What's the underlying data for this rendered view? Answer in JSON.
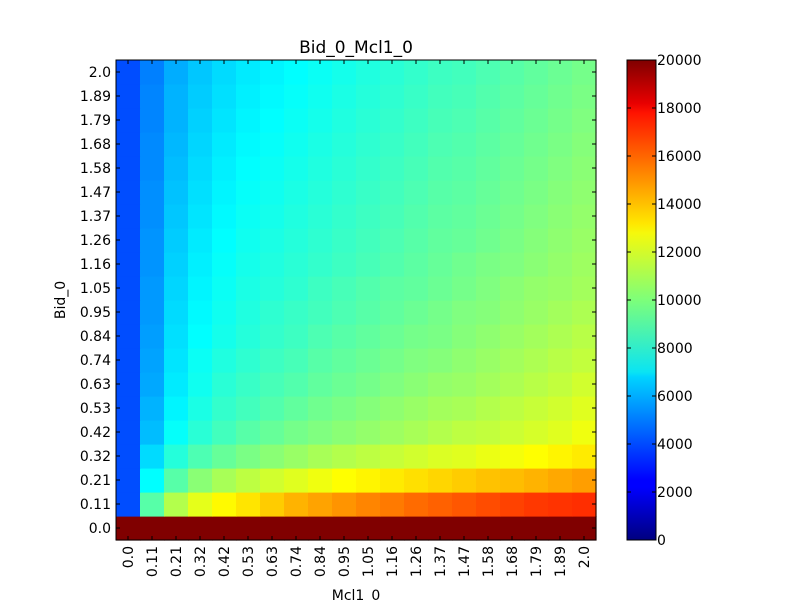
{
  "chart_data": {
    "type": "heatmap",
    "title": "Bid_0_Mcl1_0",
    "xlabel": "Mcl1_0",
    "ylabel": "Bid_0",
    "x_tick_labels": [
      "0.0",
      "0.11",
      "0.21",
      "0.32",
      "0.42",
      "0.53",
      "0.63",
      "0.74",
      "0.84",
      "0.95",
      "1.05",
      "1.16",
      "1.26",
      "1.37",
      "1.47",
      "1.58",
      "1.68",
      "1.79",
      "1.89",
      "2.0"
    ],
    "y_tick_labels": [
      "0.0",
      "0.11",
      "0.21",
      "0.32",
      "0.42",
      "0.53",
      "0.63",
      "0.74",
      "0.84",
      "0.95",
      "1.05",
      "1.16",
      "1.26",
      "1.37",
      "1.47",
      "1.58",
      "1.68",
      "1.79",
      "1.89",
      "2.0"
    ],
    "colorbar": {
      "min": 0,
      "max": 20000,
      "tick_values": [
        0,
        2000,
        4000,
        6000,
        8000,
        10000,
        12000,
        14000,
        16000,
        18000,
        20000
      ],
      "tick_labels": [
        "0",
        "2000",
        "4000",
        "6000",
        "8000",
        "10000",
        "12000",
        "14000",
        "16000",
        "18000",
        "20000"
      ],
      "colormap": "jet"
    },
    "values": [
      [
        20000,
        20000,
        20000,
        20000,
        20000,
        20000,
        20000,
        20000,
        20000,
        20000,
        20000,
        20000,
        20000,
        20000,
        20000,
        20000,
        20000,
        20000,
        20000,
        20000
      ],
      [
        4000,
        9200,
        11000,
        12000,
        12600,
        13000,
        13500,
        14000,
        14300,
        14600,
        14900,
        15100,
        15400,
        15600,
        15800,
        16000,
        16200,
        16400,
        16500,
        16600
      ],
      [
        4000,
        7500,
        9200,
        10200,
        10800,
        11200,
        11600,
        11900,
        12200,
        12500,
        12700,
        12900,
        13100,
        13300,
        13500,
        13700,
        13800,
        14000,
        14200,
        14400
      ],
      [
        4000,
        6800,
        8200,
        9000,
        9500,
        9900,
        10200,
        10500,
        10800,
        11000,
        11200,
        11400,
        11600,
        11800,
        11900,
        12100,
        12300,
        12500,
        12700,
        12900
      ],
      [
        4000,
        6200,
        7600,
        8300,
        8800,
        9200,
        9500,
        9800,
        10000,
        10200,
        10400,
        10600,
        10800,
        11000,
        11200,
        11300,
        11500,
        11700,
        11900,
        12200
      ],
      [
        4000,
        6000,
        7300,
        8000,
        8500,
        8800,
        9100,
        9400,
        9700,
        9900,
        10100,
        10300,
        10500,
        10700,
        10800,
        11000,
        11200,
        11400,
        11600,
        11900
      ],
      [
        4000,
        5800,
        7100,
        7800,
        8300,
        8600,
        8900,
        9100,
        9400,
        9600,
        9800,
        10000,
        10200,
        10400,
        10500,
        10700,
        10900,
        11100,
        11300,
        11600
      ],
      [
        4000,
        5700,
        7000,
        7700,
        8100,
        8400,
        8700,
        8900,
        9200,
        9400,
        9600,
        9800,
        10000,
        10100,
        10300,
        10500,
        10700,
        10900,
        11100,
        11300
      ],
      [
        4000,
        5600,
        6900,
        7500,
        7900,
        8200,
        8500,
        8700,
        9000,
        9200,
        9400,
        9600,
        9800,
        9900,
        10100,
        10300,
        10500,
        10700,
        10900,
        11100
      ],
      [
        4000,
        5500,
        6800,
        7400,
        7800,
        8100,
        8400,
        8600,
        8800,
        9000,
        9200,
        9400,
        9600,
        9800,
        10000,
        10100,
        10300,
        10500,
        10700,
        10900
      ],
      [
        4000,
        5500,
        6700,
        7300,
        7700,
        8000,
        8200,
        8400,
        8700,
        8900,
        9100,
        9300,
        9400,
        9600,
        9800,
        10000,
        10200,
        10400,
        10500,
        10700
      ],
      [
        4000,
        5400,
        6600,
        7200,
        7600,
        7900,
        8100,
        8300,
        8500,
        8700,
        8900,
        9100,
        9300,
        9500,
        9700,
        9900,
        10000,
        10200,
        10400,
        10600
      ],
      [
        4000,
        5400,
        6500,
        7100,
        7500,
        7800,
        8000,
        8200,
        8400,
        8600,
        8800,
        9000,
        9200,
        9400,
        9500,
        9700,
        9900,
        10100,
        10300,
        10500
      ],
      [
        4000,
        5300,
        6400,
        7000,
        7400,
        7700,
        7900,
        8100,
        8300,
        8500,
        8700,
        8900,
        9100,
        9300,
        9400,
        9600,
        9800,
        10000,
        10200,
        10400
      ],
      [
        4000,
        5300,
        6300,
        6900,
        7300,
        7600,
        7800,
        8000,
        8200,
        8400,
        8600,
        8800,
        9000,
        9200,
        9300,
        9500,
        9700,
        9900,
        10100,
        10300
      ],
      [
        4000,
        5200,
        6200,
        6800,
        7200,
        7500,
        7700,
        7900,
        8100,
        8300,
        8500,
        8700,
        8900,
        9100,
        9200,
        9400,
        9600,
        9800,
        10000,
        10200
      ],
      [
        4000,
        5200,
        6100,
        6700,
        7100,
        7400,
        7600,
        7800,
        8000,
        8200,
        8400,
        8600,
        8800,
        9000,
        9100,
        9300,
        9500,
        9700,
        9900,
        10100
      ],
      [
        4000,
        5100,
        6000,
        6600,
        7000,
        7300,
        7500,
        7700,
        7900,
        8100,
        8300,
        8500,
        8700,
        8900,
        9000,
        9200,
        9400,
        9600,
        9800,
        10000
      ],
      [
        4000,
        5100,
        6000,
        6500,
        6900,
        7200,
        7400,
        7600,
        7800,
        8000,
        8200,
        8400,
        8600,
        8800,
        8900,
        9100,
        9300,
        9500,
        9700,
        9900
      ],
      [
        4000,
        5000,
        5900,
        6400,
        6800,
        7100,
        7300,
        7500,
        7700,
        7900,
        8100,
        8300,
        8500,
        8700,
        8800,
        9000,
        9200,
        9400,
        9600,
        9800
      ]
    ]
  }
}
